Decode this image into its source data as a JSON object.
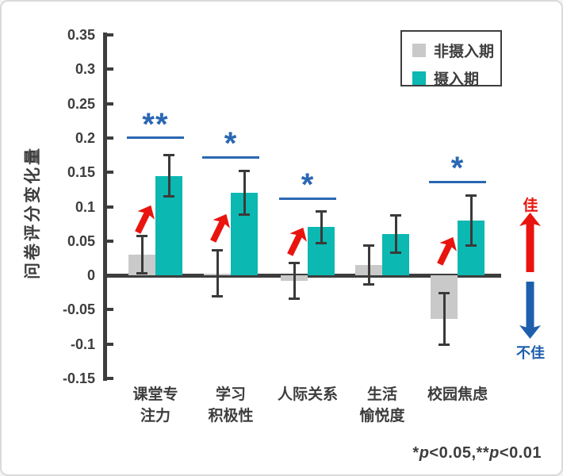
{
  "figure": {
    "direction_good": "佳",
    "direction_bad": "不佳",
    "footnote_text": "*p<0.05,**p<0.01",
    "footnote_parts": {
      "star1": "*",
      "p1": "p",
      "rel1": "<0.05,",
      "star2": "**",
      "p2": "p",
      "rel2": "<0.01"
    }
  },
  "colors": {
    "bar_non_intake": "#c9c9c9",
    "bar_intake": "#0bb8b2",
    "axis": "#3d3d3d",
    "error_bar": "#3a3a3a",
    "text": "#3d3d3d",
    "significance_blue": "#2a67b2",
    "arrow_red": "#e9140e",
    "arrow_blue": "#1d5fad"
  },
  "chart_data": {
    "type": "bar",
    "title": "",
    "ylabel": "问卷评分变化量",
    "xlabel": "",
    "ylim": [
      -0.15,
      0.35
    ],
    "yticks": [
      0.35,
      0.3,
      0.25,
      0.2,
      0.15,
      0.1,
      0.05,
      0,
      -0.05,
      -0.1,
      -0.15
    ],
    "ytick_labels": [
      "0.35",
      "0.3",
      "0.25",
      "0.2",
      "0.15",
      "0.1",
      "0.05",
      "0",
      "-0.05",
      "-0.1",
      "-0.15"
    ],
    "grid": false,
    "legend_position": "top-right",
    "categories": [
      "课堂专注力",
      "学习积极性",
      "人际关系",
      "生活愉悦度",
      "校园焦虑"
    ],
    "category_label_lines": [
      [
        "课堂专",
        "注力"
      ],
      [
        "学习",
        "积极性"
      ],
      [
        "人际关系"
      ],
      [
        "生活",
        "愉悦度"
      ],
      [
        "校园焦虑"
      ]
    ],
    "series": [
      {
        "name": "非摄入期",
        "color": "#c9c9c9",
        "values": [
          0.03,
          0.003,
          -0.008,
          0.015,
          -0.063
        ],
        "errors": [
          0.028,
          0.034,
          0.027,
          0.029,
          0.038
        ]
      },
      {
        "name": "摄入期",
        "color": "#0bb8b2",
        "values": [
          0.145,
          0.12,
          0.07,
          0.06,
          0.08
        ],
        "errors": [
          0.031,
          0.032,
          0.024,
          0.028,
          0.037
        ]
      }
    ],
    "significance": [
      {
        "label": "**",
        "line_y": 0.2,
        "arrow": true
      },
      {
        "label": "*",
        "line_y": 0.172,
        "arrow": true
      },
      {
        "label": "*",
        "line_y": 0.112,
        "arrow": true
      },
      null,
      {
        "label": "*",
        "line_y": 0.136,
        "arrow": true
      }
    ]
  }
}
